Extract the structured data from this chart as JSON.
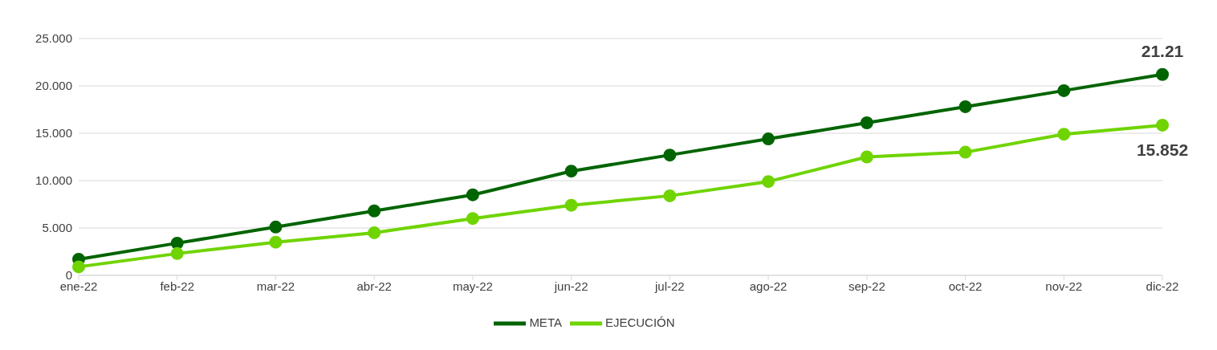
{
  "chart_data": {
    "type": "line",
    "categories": [
      "ene-22",
      "feb-22",
      "mar-22",
      "abr-22",
      "may-22",
      "jun-22",
      "jul-22",
      "ago-22",
      "sep-22",
      "oct-22",
      "nov-22",
      "dic-22"
    ],
    "series": [
      {
        "name": "META",
        "color": "#006400",
        "values": [
          1.7,
          3.4,
          5.1,
          6.8,
          8.5,
          11.0,
          12.7,
          14.4,
          16.1,
          17.8,
          19.5,
          21.21
        ],
        "value_labels": [
          null,
          null,
          null,
          null,
          null,
          null,
          null,
          null,
          null,
          null,
          null,
          "21.21"
        ]
      },
      {
        "name": "EJECUCIÓN",
        "color": "#6fd400",
        "values": [
          0.9,
          2.3,
          3.5,
          4.5,
          6.0,
          7.4,
          8.4,
          9.9,
          12.5,
          13.0,
          14.9,
          15.852
        ],
        "value_labels": [
          null,
          null,
          null,
          null,
          null,
          null,
          null,
          null,
          null,
          null,
          null,
          "15.852"
        ]
      }
    ],
    "ylim": [
      0,
      25
    ],
    "yticks": [
      0,
      {
        "value": 5,
        "label": "5.000"
      },
      {
        "value": 10,
        "label": "10.000"
      },
      {
        "value": 15,
        "label": "15.000"
      },
      {
        "value": 20,
        "label": "20.000"
      },
      {
        "value": 25,
        "label": "25.000"
      }
    ],
    "grid": "y",
    "legend": "bottom",
    "marker": "circle",
    "line_style": "solid"
  }
}
